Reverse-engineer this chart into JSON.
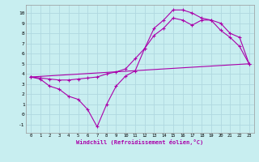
{
  "background_color": "#c8eef0",
  "grid_color": "#b0d8e0",
  "line_color": "#aa00aa",
  "xlabel": "Windchill (Refroidissement éolien,°C)",
  "xlim": [
    -0.5,
    23.5
  ],
  "ylim": [
    -1.8,
    10.8
  ],
  "xticks": [
    0,
    1,
    2,
    3,
    4,
    5,
    6,
    7,
    8,
    9,
    10,
    11,
    12,
    13,
    14,
    15,
    16,
    17,
    18,
    19,
    20,
    21,
    22,
    23
  ],
  "yticks": [
    -1,
    0,
    1,
    2,
    3,
    4,
    5,
    6,
    7,
    8,
    9,
    10
  ],
  "line1_x": [
    0,
    1,
    2,
    3,
    4,
    5,
    6,
    7,
    8,
    9,
    10,
    11,
    12,
    13,
    14,
    15,
    16,
    17,
    18,
    19,
    20,
    21,
    22,
    23
  ],
  "line1_y": [
    3.7,
    3.5,
    2.8,
    2.5,
    1.8,
    1.5,
    0.5,
    -1.2,
    1.0,
    2.8,
    3.8,
    4.3,
    6.5,
    8.5,
    9.3,
    10.3,
    10.3,
    10.0,
    9.5,
    9.3,
    8.3,
    7.6,
    6.7,
    5.0
  ],
  "line2_x": [
    0,
    1,
    2,
    3,
    4,
    5,
    6,
    7,
    8,
    9,
    10,
    11,
    12,
    13,
    14,
    15,
    16,
    17,
    18,
    19,
    20,
    21,
    22,
    23
  ],
  "line2_y": [
    3.7,
    3.6,
    3.5,
    3.4,
    3.4,
    3.5,
    3.6,
    3.7,
    4.0,
    4.2,
    4.5,
    5.5,
    6.5,
    7.8,
    8.5,
    9.5,
    9.3,
    8.8,
    9.3,
    9.3,
    9.0,
    8.0,
    7.6,
    5.0
  ],
  "line3_x": [
    0,
    23
  ],
  "line3_y": [
    3.7,
    5.0
  ]
}
